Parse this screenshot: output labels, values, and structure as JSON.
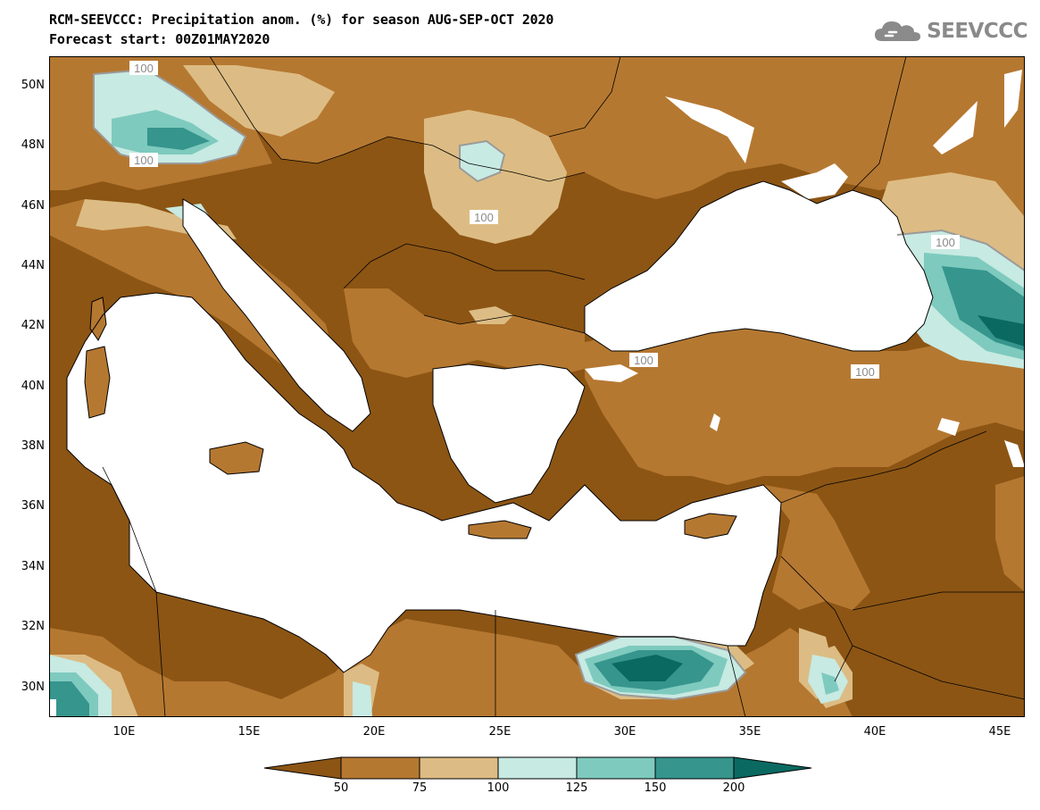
{
  "header": {
    "title_line1": "RCM-SEEVCCC: Precipitation anom. (%) for season AUG-SEP-OCT 2020",
    "title_line2": "Forecast start: 00Z01MAY2020",
    "logo_text": "SEEVCCC"
  },
  "map": {
    "lat_labels": [
      "50N",
      "48N",
      "46N",
      "44N",
      "42N",
      "40N",
      "38N",
      "36N",
      "34N",
      "32N",
      "30N"
    ],
    "lon_labels": [
      "10E",
      "15E",
      "20E",
      "25E",
      "30E",
      "35E",
      "40E",
      "45E"
    ],
    "contour_labels": [
      "100",
      "100",
      "100",
      "100",
      "100",
      "100"
    ]
  },
  "colorbar": {
    "labels": [
      "50",
      "75",
      "100",
      "125",
      "150",
      "200"
    ],
    "colors": {
      "below_50": "#8c5514",
      "50_75": "#b57831",
      "75_100": "#dcbc84",
      "100_125": "#c7eae2",
      "125_150": "#7ecabe",
      "150_200": "#36958d",
      "above_200": "#0a6a62",
      "sea": "#ffffff"
    }
  }
}
